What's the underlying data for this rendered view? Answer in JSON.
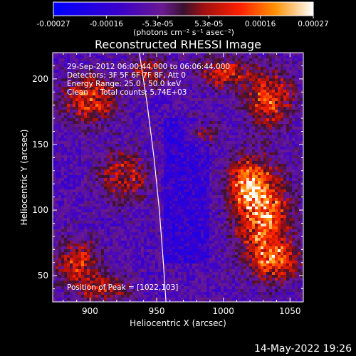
{
  "chart_data": {
    "type": "heatmap",
    "title": "Reconstructed RHESSI Image",
    "xlabel": "Heliocentric X (arcsec)",
    "ylabel": "Heliocentric Y (arcsec)",
    "xlim": [
      872,
      1060
    ],
    "ylim": [
      30,
      220
    ],
    "xticks": [
      900,
      950,
      1000,
      1050
    ],
    "yticks": [
      50,
      100,
      150,
      200
    ],
    "colorbar": {
      "min": -0.00027,
      "max": 0.00027,
      "tick_labels": [
        "-0.00027",
        "-0.00016",
        "-5.3e-05",
        "5.3e-05",
        "0.00016",
        "0.00027"
      ],
      "unit_label": "(photons cm⁻² s⁻¹ asec⁻²)"
    },
    "annotations": [
      "29-Sep-2012 06:00:44.000 to 06:06:44.000",
      "Detectors: 3F 5F 6F 7F 8F, Att 0",
      "Energy Range: 25.0 - 50.0 keV",
      "Clean     Total counts: 5.74E+03"
    ],
    "peak_label": "Position of Peak = [1022,103]",
    "peak": [
      1022,
      103
    ],
    "limb": {
      "description_points": [
        [
          937,
          220
        ],
        [
          943,
          180
        ],
        [
          948,
          140
        ],
        [
          952,
          100
        ],
        [
          955,
          60
        ],
        [
          957,
          30
        ]
      ]
    },
    "bright_regions": [
      {
        "x": 1030,
        "y": 95,
        "sx": 20,
        "sy": 35,
        "amp": 0.00026
      },
      {
        "x": 1018,
        "y": 120,
        "sx": 14,
        "sy": 18,
        "amp": 0.00022
      },
      {
        "x": 1040,
        "y": 60,
        "sx": 16,
        "sy": 14,
        "amp": 0.0002
      },
      {
        "x": 1035,
        "y": 185,
        "sx": 18,
        "sy": 22,
        "amp": 0.0002
      },
      {
        "x": 1000,
        "y": 205,
        "sx": 18,
        "sy": 12,
        "amp": 0.00018
      },
      {
        "x": 985,
        "y": 160,
        "sx": 10,
        "sy": 10,
        "amp": 0.00016
      },
      {
        "x": 900,
        "y": 185,
        "sx": 20,
        "sy": 18,
        "amp": 0.0002
      },
      {
        "x": 925,
        "y": 125,
        "sx": 18,
        "sy": 20,
        "amp": 0.00016
      },
      {
        "x": 890,
        "y": 60,
        "sx": 16,
        "sy": 18,
        "amp": 0.00018
      },
      {
        "x": 910,
        "y": 40,
        "sx": 18,
        "sy": 10,
        "amp": 0.00016
      },
      {
        "x": 945,
        "y": 205,
        "sx": 14,
        "sy": 12,
        "amp": 0.00014
      }
    ]
  },
  "footer": {
    "datestamp": "14-May-2022 19:26"
  },
  "colors": {
    "background": "#000000",
    "text": "#ffffff",
    "limb": "#ffffff"
  }
}
